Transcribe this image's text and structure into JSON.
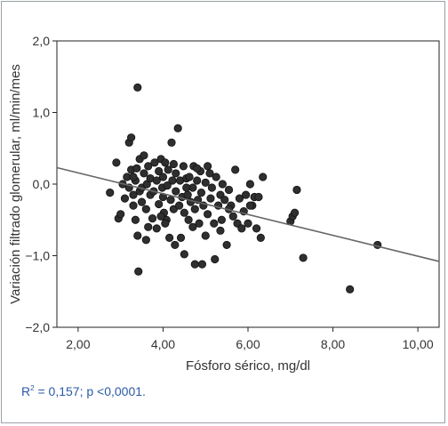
{
  "chart_data": {
    "type": "scatter",
    "xlabel": "Fósforo sérico, mg/dl",
    "ylabel": "Variación filtrado glomerular, ml/min/mes",
    "xlim": [
      1.5,
      10.5
    ],
    "ylim": [
      -2.0,
      2.0
    ],
    "x_ticks": [
      "2,00",
      "4,00",
      "6,00",
      "8,00",
      "10,00"
    ],
    "x_tick_values": [
      2,
      4,
      6,
      8,
      10
    ],
    "y_ticks": [
      "2,0",
      "1,0",
      "0,0",
      "−1,0",
      "−2,0"
    ],
    "y_tick_values": [
      2,
      1,
      0,
      -1,
      -2
    ],
    "grid": false,
    "fit_line": {
      "x1": 1.5,
      "y1": 0.23,
      "x2": 10.5,
      "y2": -1.08
    },
    "points": [
      [
        2.75,
        -0.12
      ],
      [
        2.9,
        0.3
      ],
      [
        2.95,
        -0.48
      ],
      [
        3.0,
        -0.42
      ],
      [
        3.05,
        0.0
      ],
      [
        3.1,
        -0.2
      ],
      [
        3.15,
        0.1
      ],
      [
        3.2,
        0.58
      ],
      [
        3.2,
        -0.05
      ],
      [
        3.25,
        0.65
      ],
      [
        3.25,
        0.2
      ],
      [
        3.3,
        -0.15
      ],
      [
        3.3,
        -0.3
      ],
      [
        3.35,
        0.05
      ],
      [
        3.35,
        -0.5
      ],
      [
        3.38,
        0.22
      ],
      [
        3.4,
        1.35
      ],
      [
        3.4,
        -0.72
      ],
      [
        3.42,
        -1.22
      ],
      [
        3.45,
        -0.1
      ],
      [
        3.45,
        0.35
      ],
      [
        3.5,
        -0.05
      ],
      [
        3.5,
        -0.25
      ],
      [
        3.55,
        0.15
      ],
      [
        3.55,
        0.4
      ],
      [
        3.6,
        -0.35
      ],
      [
        3.6,
        -0.78
      ],
      [
        3.62,
        0.0
      ],
      [
        3.65,
        0.25
      ],
      [
        3.7,
        -0.15
      ],
      [
        3.7,
        0.08
      ],
      [
        3.75,
        -0.48
      ],
      [
        3.78,
        -0.1
      ],
      [
        3.8,
        0.3
      ],
      [
        3.85,
        0.05
      ],
      [
        3.85,
        -0.62
      ],
      [
        3.9,
        -0.28
      ],
      [
        3.9,
        0.18
      ],
      [
        3.95,
        0.35
      ],
      [
        3.98,
        -0.05
      ],
      [
        4.0,
        -0.18
      ],
      [
        4.0,
        0.1
      ],
      [
        4.02,
        -0.4
      ],
      [
        4.05,
        0.3
      ],
      [
        4.08,
        -0.5
      ],
      [
        4.1,
        -0.02
      ],
      [
        4.12,
        0.2
      ],
      [
        4.15,
        -0.75
      ],
      [
        4.18,
        -0.22
      ],
      [
        4.2,
        0.58
      ],
      [
        4.22,
        0.05
      ],
      [
        4.25,
        -0.35
      ],
      [
        4.28,
        -0.85
      ],
      [
        4.3,
        0.15
      ],
      [
        4.3,
        -0.1
      ],
      [
        4.35,
        0.78
      ],
      [
        4.38,
        -0.3
      ],
      [
        4.4,
        0.05
      ],
      [
        4.42,
        -0.75
      ],
      [
        4.45,
        -0.18
      ],
      [
        4.48,
        0.25
      ],
      [
        4.5,
        -0.98
      ],
      [
        4.5,
        -0.4
      ],
      [
        4.55,
        0.08
      ],
      [
        4.58,
        -0.15
      ],
      [
        4.6,
        -0.5
      ],
      [
        4.62,
        0.1
      ],
      [
        4.65,
        -0.25
      ],
      [
        4.7,
        -0.05
      ],
      [
        4.72,
        0.25
      ],
      [
        4.75,
        -0.35
      ],
      [
        4.75,
        -1.12
      ],
      [
        4.8,
        0.05
      ],
      [
        4.82,
        -0.22
      ],
      [
        4.85,
        -0.55
      ],
      [
        4.88,
        0.18
      ],
      [
        4.9,
        -0.12
      ],
      [
        4.92,
        -1.12
      ],
      [
        4.95,
        -0.3
      ],
      [
        5.0,
        0.02
      ],
      [
        5.0,
        -0.72
      ],
      [
        5.05,
        -0.42
      ],
      [
        5.1,
        0.15
      ],
      [
        5.12,
        -0.2
      ],
      [
        5.15,
        -0.05
      ],
      [
        5.2,
        -0.55
      ],
      [
        5.22,
        -1.05
      ],
      [
        5.25,
        0.1
      ],
      [
        5.3,
        -0.3
      ],
      [
        5.35,
        -0.15
      ],
      [
        5.38,
        -0.5
      ],
      [
        5.4,
        0.0
      ],
      [
        5.45,
        -0.22
      ],
      [
        5.5,
        -0.85
      ],
      [
        5.55,
        -0.08
      ],
      [
        5.6,
        -0.3
      ],
      [
        5.65,
        -0.45
      ],
      [
        5.7,
        0.2
      ],
      [
        5.75,
        -0.55
      ],
      [
        5.8,
        -0.2
      ],
      [
        5.85,
        -0.62
      ],
      [
        5.9,
        -0.38
      ],
      [
        5.95,
        -0.15
      ],
      [
        6.0,
        -0.55
      ],
      [
        6.05,
        0.0
      ],
      [
        6.1,
        -0.3
      ],
      [
        6.15,
        -0.18
      ],
      [
        6.2,
        -0.62
      ],
      [
        6.25,
        -0.18
      ],
      [
        6.3,
        -0.75
      ],
      [
        6.35,
        0.1
      ],
      [
        7.0,
        -0.52
      ],
      [
        7.05,
        -0.45
      ],
      [
        7.1,
        -0.4
      ],
      [
        7.15,
        -0.08
      ],
      [
        7.3,
        -1.03
      ],
      [
        8.4,
        -1.47
      ],
      [
        9.05,
        -0.85
      ],
      [
        4.05,
        -0.55
      ],
      [
        3.65,
        -0.6
      ],
      [
        4.55,
        -0.05
      ],
      [
        5.05,
        0.25
      ],
      [
        4.8,
        0.22
      ],
      [
        3.3,
        0.1
      ],
      [
        4.7,
        -0.6
      ],
      [
        5.35,
        -0.65
      ],
      [
        3.95,
        -0.45
      ],
      [
        4.25,
        0.28
      ],
      [
        5.55,
        -0.35
      ],
      [
        6.05,
        -0.3
      ]
    ]
  },
  "stats_text": "= 0,157; p <0,0001.",
  "stats_prefix": "R",
  "stats_sup": "2"
}
